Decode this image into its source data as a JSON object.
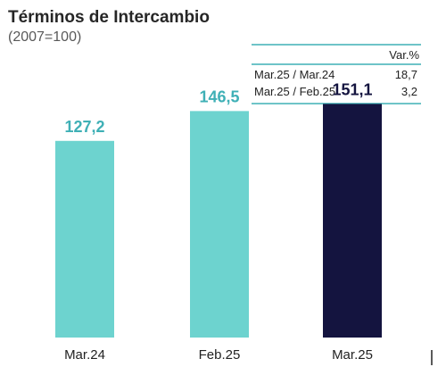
{
  "chart_data": {
    "type": "bar",
    "title": "Términos de Intercambio",
    "subtitle": "(2007=100)",
    "categories": [
      "Mar.24",
      "Feb.25",
      "Mar.25"
    ],
    "values": [
      127.2,
      146.5,
      151.1
    ],
    "value_labels": [
      "127,2",
      "146,5",
      "151,1"
    ],
    "bar_colors": [
      "#6dd3cf",
      "#6dd3cf",
      "#14143f"
    ],
    "label_colors": [
      "#3fb0b6",
      "#3fb0b6",
      "#14143f"
    ],
    "ylim": [
      0,
      160
    ],
    "grid": false,
    "xlabel": "",
    "ylabel": ""
  },
  "variation_table": {
    "header": "Var.%",
    "rows": [
      {
        "label": "Mar.25 / Mar.24",
        "value": "18,7"
      },
      {
        "label": "Mar.25 / Feb.25",
        "value": "3,2"
      }
    ],
    "line_color": "#3fb0b6"
  }
}
